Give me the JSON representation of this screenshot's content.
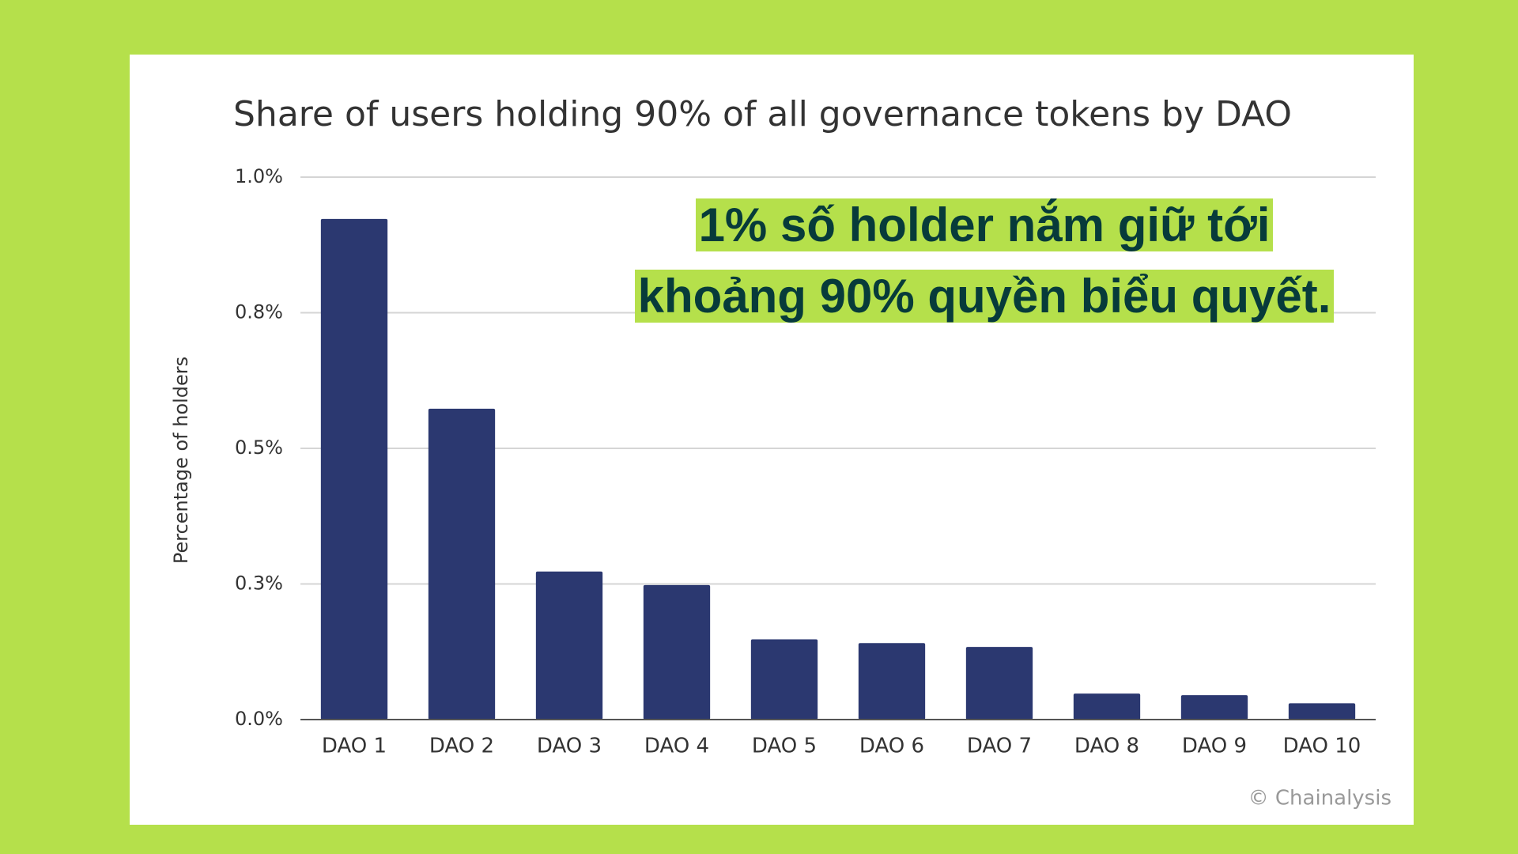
{
  "chart_data": {
    "type": "bar",
    "title": "Share of users holding 90% of all governance tokens by DAO",
    "ylabel": "Percentage of holders",
    "categories": [
      "DAO 1",
      "DAO 2",
      "DAO 3",
      "DAO 4",
      "DAO 5",
      "DAO 6",
      "DAO 7",
      "DAO 8",
      "DAO 9",
      "DAO 10"
    ],
    "values": [
      0.923,
      0.573,
      0.273,
      0.248,
      0.148,
      0.141,
      0.134,
      0.048,
      0.045,
      0.03
    ],
    "color": "#2b3870",
    "ylim": [
      0,
      1
    ],
    "yticks": [
      {
        "value": 0,
        "label": "0.0%"
      },
      {
        "value": 0.25,
        "label": "0.3%"
      },
      {
        "value": 0.5,
        "label": "0.5%"
      },
      {
        "value": 0.75,
        "label": "0.8%"
      },
      {
        "value": 1,
        "label": "1.0%"
      }
    ],
    "grid": true,
    "annotation": [
      "1% số holder nắm giữ tới",
      "khoảng 90% quyền biểu quyết."
    ],
    "source": "© Chainalysis"
  }
}
